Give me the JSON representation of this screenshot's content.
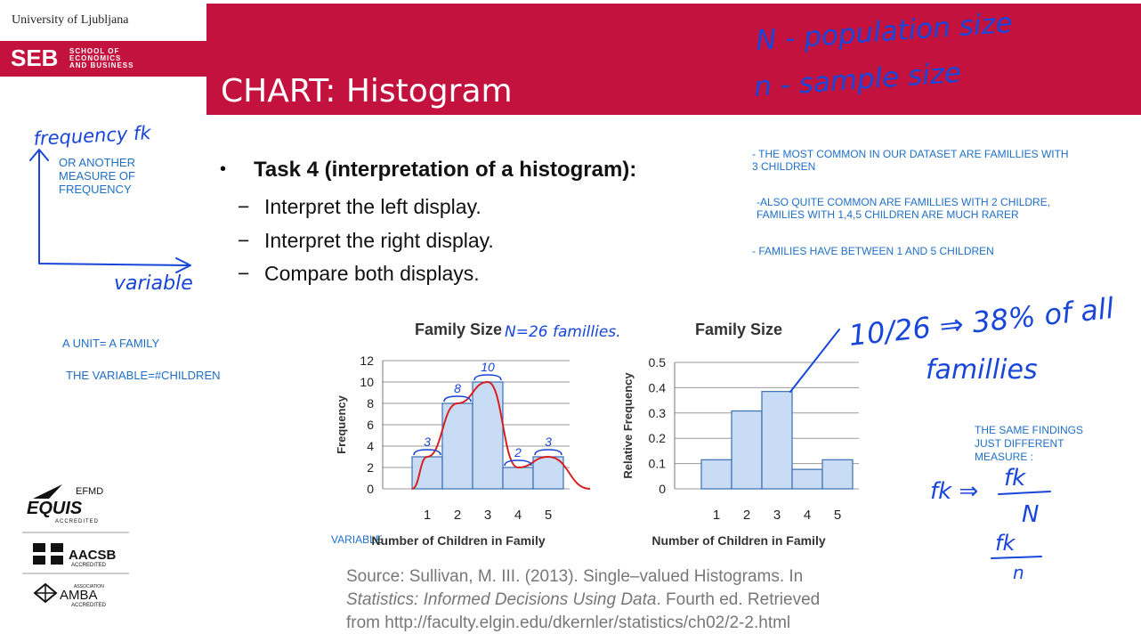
{
  "header": {
    "university": "University of Ljubljana",
    "seb_mark": "SEB",
    "school_lines": [
      "SCHOOL OF",
      "ECONOMICS",
      "AND BUSINESS"
    ],
    "title": "CHART: Histogram"
  },
  "colors": {
    "brand": "#c4123e",
    "annotation_blue": "#1f6fc6",
    "ink": "#1846d8",
    "curve_red": "#d62020",
    "bar_fill": "#c9dcf5",
    "bar_stroke": "#3a6eb5"
  },
  "notes": {
    "left_axis": [
      "OR ANOTHER",
      "MEASURE OF",
      "FREQUENCY"
    ],
    "unit": "A UNIT= A FAMILY",
    "variable": "THE VARIABLE=#CHILDREN",
    "variable_tag": "VARIABLE",
    "right_1": [
      "- THE MOST COMMON IN OUR DATASET ARE FAMILLIES WITH",
      "3 CHILDREN"
    ],
    "right_2": [
      "-ALSO QUITE COMMON ARE FAMILLIES WITH 2 CHILDRE,",
      "FAMILIES WITH 1,4,5 CHILDREN ARE MUCH RARER"
    ],
    "right_3": "- FAMILIES HAVE BETWEEN 1 AND 5 CHILDREN",
    "same_findings": [
      "THE SAME FINDINGS",
      "JUST DIFFERENT",
      "MEASURE :"
    ]
  },
  "task": {
    "bullet": "•",
    "title": "Task 4 (interpretation of a histogram):",
    "dash": "−",
    "items": [
      "Interpret the left display.",
      "Interpret the right display.",
      "Compare both displays."
    ]
  },
  "handwriting": {
    "frequency": "frequency fk",
    "variable": "variable",
    "pop_size": "N - population size",
    "sample_size": "n - sample size",
    "n26": "N=26 famillies.",
    "pct": "10/26 ⇒ 38% of all",
    "famillies": "famillies",
    "formula_lhs": "fk ⇒",
    "formula_num": "fk",
    "formula_den": "N",
    "formula2_num": "fk",
    "formula2_den": "n",
    "bar_labels": [
      "3",
      "8",
      "10",
      "2",
      "3"
    ]
  },
  "chart_data": [
    {
      "type": "bar",
      "title": "Family Size",
      "xlabel": "Number of Children in Family",
      "ylabel": "Frequency",
      "categories": [
        "1",
        "2",
        "3",
        "4",
        "5"
      ],
      "values": [
        3,
        8,
        10,
        2,
        3
      ],
      "ylim": [
        0,
        12
      ],
      "yticks": [
        "0",
        "2",
        "4",
        "6",
        "8",
        "10",
        "12"
      ],
      "grid": true
    },
    {
      "type": "bar",
      "title": "Family Size",
      "xlabel": "Number of Children in Family",
      "ylabel": "Relative Frequency",
      "categories": [
        "1",
        "2",
        "3",
        "4",
        "5"
      ],
      "values": [
        0.115,
        0.308,
        0.385,
        0.077,
        0.115
      ],
      "ylim": [
        0,
        0.5
      ],
      "yticks": [
        "0",
        "0.1",
        "0.2",
        "0.3",
        "0.4",
        "0.5"
      ],
      "grid": true
    }
  ],
  "source": {
    "line1": "Source: Sullivan, M. III. (2013). Single–valued Histograms. In",
    "italic": "Statistics: Informed Decisions Using Data",
    "line2_rest": ". Fourth ed. Retrieved",
    "line3": "from http://faculty.elgin.edu/dkernler/statistics/ch02/2-2.html"
  },
  "accreditations": {
    "efmd": "EFMD",
    "equis": "EQUIS",
    "equis_sub": "ACCREDITED",
    "aacsb": "AACSB",
    "aacsb_sub": "ACCREDITED",
    "amba_top": "ASSOCIATION",
    "amba": "AMBA",
    "amba_sub": "ACCREDITED"
  }
}
